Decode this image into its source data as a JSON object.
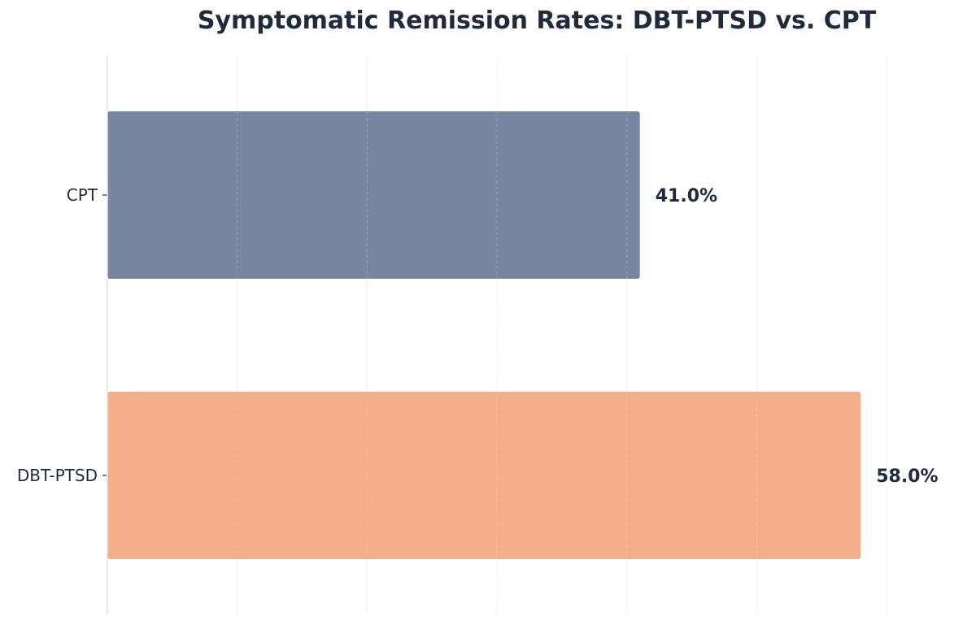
{
  "chart_data": {
    "type": "bar",
    "orientation": "horizontal",
    "title": "Symptomatic Remission Rates: DBT-PTSD vs. CPT",
    "xlabel": "",
    "ylabel": "",
    "categories": [
      "CPT",
      "DBT-PTSD"
    ],
    "values": [
      41.0,
      58.0
    ],
    "value_labels": [
      "41.0%",
      "58.0%"
    ],
    "bar_colors": [
      "#7886a0",
      "#f4ae8a"
    ],
    "xlim": [
      0,
      65
    ],
    "grid": true,
    "legend": "none"
  }
}
